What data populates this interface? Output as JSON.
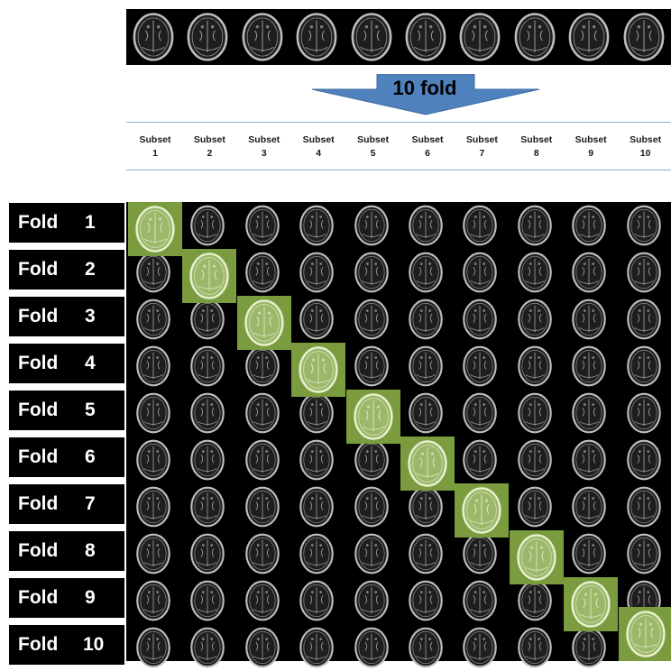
{
  "arrow": {
    "label": "10 fold",
    "color": "#4f81bd"
  },
  "subsets": [
    {
      "word": "Subset",
      "num": "1"
    },
    {
      "word": "Subset",
      "num": "2"
    },
    {
      "word": "Subset",
      "num": "3"
    },
    {
      "word": "Subset",
      "num": "4"
    },
    {
      "word": "Subset",
      "num": "5"
    },
    {
      "word": "Subset",
      "num": "6"
    },
    {
      "word": "Subset",
      "num": "7"
    },
    {
      "word": "Subset",
      "num": "8"
    },
    {
      "word": "Subset",
      "num": "9"
    },
    {
      "word": "Subset",
      "num": "10"
    }
  ],
  "folds": [
    {
      "word": "Fold",
      "num": "1",
      "test_subset": 1
    },
    {
      "word": "Fold",
      "num": "2",
      "test_subset": 2
    },
    {
      "word": "Fold",
      "num": "3",
      "test_subset": 3
    },
    {
      "word": "Fold",
      "num": "4",
      "test_subset": 4
    },
    {
      "word": "Fold",
      "num": "5",
      "test_subset": 5
    },
    {
      "word": "Fold",
      "num": "6",
      "test_subset": 6
    },
    {
      "word": "Fold",
      "num": "7",
      "test_subset": 7
    },
    {
      "word": "Fold",
      "num": "8",
      "test_subset": 8
    },
    {
      "word": "Fold",
      "num": "9",
      "test_subset": 9
    },
    {
      "word": "Fold",
      "num": "10",
      "test_subset": 10
    }
  ],
  "colors": {
    "test_highlight": "#7a9c3e",
    "background": "#000000",
    "brain_outline": "#bdbdbd"
  },
  "icons": {
    "scan": "brain-scan-icon"
  }
}
